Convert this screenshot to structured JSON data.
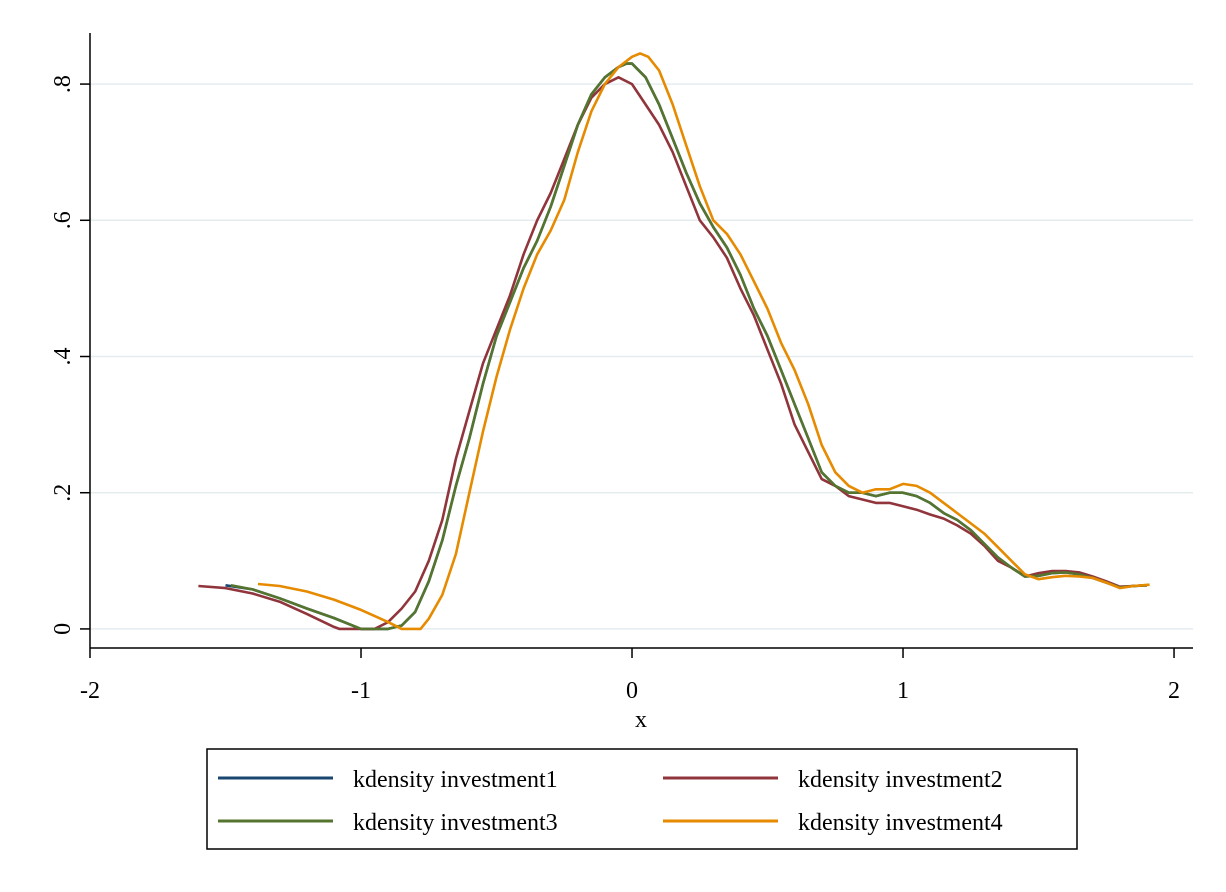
{
  "chart_data": {
    "type": "line",
    "title": "",
    "xlabel": "x",
    "ylabel": "",
    "xlim": [
      -2.0,
      2.07
    ],
    "ylim": [
      -0.028,
      0.875
    ],
    "xticks": [
      -2,
      -1,
      0,
      1,
      2
    ],
    "xtick_labels": [
      "-2",
      "-1",
      "0",
      "1",
      "2"
    ],
    "yticks": [
      0,
      0.2,
      0.4,
      0.6,
      0.8
    ],
    "ytick_labels": [
      "0",
      ".2",
      ".4",
      ".6",
      ".8"
    ],
    "grid": "horizontal",
    "legend": "bottom",
    "series": [
      {
        "name": "kdensity investment1",
        "color": "#1a476f",
        "points": [
          [
            -1.5,
            0.064
          ],
          [
            -1.4,
            0.058
          ],
          [
            -1.3,
            0.045
          ],
          [
            -1.2,
            0.03
          ],
          [
            -1.1,
            0.016
          ],
          [
            -1.0,
            0.0
          ],
          [
            -0.9,
            0.0
          ],
          [
            -0.85,
            0.005
          ],
          [
            -0.8,
            0.025
          ],
          [
            -0.75,
            0.07
          ],
          [
            -0.7,
            0.13
          ],
          [
            -0.65,
            0.21
          ],
          [
            -0.6,
            0.28
          ],
          [
            -0.55,
            0.36
          ],
          [
            -0.5,
            0.43
          ],
          [
            -0.45,
            0.48
          ],
          [
            -0.4,
            0.53
          ],
          [
            -0.35,
            0.57
          ],
          [
            -0.3,
            0.62
          ],
          [
            -0.25,
            0.68
          ],
          [
            -0.2,
            0.74
          ],
          [
            -0.15,
            0.785
          ],
          [
            -0.1,
            0.81
          ],
          [
            -0.05,
            0.825
          ],
          [
            -0.02,
            0.83
          ],
          [
            0.0,
            0.83
          ],
          [
            0.05,
            0.81
          ],
          [
            0.1,
            0.77
          ],
          [
            0.15,
            0.72
          ],
          [
            0.2,
            0.67
          ],
          [
            0.25,
            0.625
          ],
          [
            0.3,
            0.59
          ],
          [
            0.35,
            0.56
          ],
          [
            0.4,
            0.52
          ],
          [
            0.45,
            0.47
          ],
          [
            0.5,
            0.43
          ],
          [
            0.55,
            0.38
          ],
          [
            0.6,
            0.33
          ],
          [
            0.65,
            0.28
          ],
          [
            0.7,
            0.23
          ],
          [
            0.75,
            0.21
          ],
          [
            0.8,
            0.2
          ],
          [
            0.85,
            0.2
          ],
          [
            0.9,
            0.195
          ],
          [
            0.95,
            0.2
          ],
          [
            1.0,
            0.2
          ],
          [
            1.05,
            0.195
          ],
          [
            1.1,
            0.185
          ],
          [
            1.15,
            0.17
          ],
          [
            1.2,
            0.16
          ],
          [
            1.25,
            0.145
          ],
          [
            1.3,
            0.125
          ],
          [
            1.35,
            0.105
          ],
          [
            1.4,
            0.09
          ],
          [
            1.45,
            0.077
          ],
          [
            1.5,
            0.078
          ],
          [
            1.55,
            0.082
          ],
          [
            1.6,
            0.083
          ],
          [
            1.65,
            0.08
          ],
          [
            1.7,
            0.075
          ],
          [
            1.75,
            0.068
          ],
          [
            1.8,
            0.061
          ],
          [
            1.85,
            0.063
          ],
          [
            1.9,
            0.064
          ]
        ]
      },
      {
        "name": "kdensity investment2",
        "color": "#90353b",
        "points": [
          [
            -1.6,
            0.063
          ],
          [
            -1.5,
            0.06
          ],
          [
            -1.4,
            0.052
          ],
          [
            -1.3,
            0.04
          ],
          [
            -1.2,
            0.022
          ],
          [
            -1.1,
            0.003
          ],
          [
            -1.08,
            0.0
          ],
          [
            -0.95,
            0.0
          ],
          [
            -0.9,
            0.01
          ],
          [
            -0.85,
            0.03
          ],
          [
            -0.8,
            0.055
          ],
          [
            -0.75,
            0.1
          ],
          [
            -0.7,
            0.16
          ],
          [
            -0.65,
            0.25
          ],
          [
            -0.6,
            0.32
          ],
          [
            -0.55,
            0.39
          ],
          [
            -0.5,
            0.44
          ],
          [
            -0.45,
            0.49
          ],
          [
            -0.4,
            0.55
          ],
          [
            -0.35,
            0.6
          ],
          [
            -0.3,
            0.64
          ],
          [
            -0.25,
            0.69
          ],
          [
            -0.2,
            0.74
          ],
          [
            -0.15,
            0.78
          ],
          [
            -0.1,
            0.8
          ],
          [
            -0.05,
            0.81
          ],
          [
            0.0,
            0.8
          ],
          [
            0.05,
            0.77
          ],
          [
            0.1,
            0.74
          ],
          [
            0.15,
            0.7
          ],
          [
            0.2,
            0.65
          ],
          [
            0.25,
            0.6
          ],
          [
            0.3,
            0.575
          ],
          [
            0.35,
            0.545
          ],
          [
            0.4,
            0.5
          ],
          [
            0.45,
            0.46
          ],
          [
            0.5,
            0.41
          ],
          [
            0.55,
            0.36
          ],
          [
            0.6,
            0.3
          ],
          [
            0.65,
            0.26
          ],
          [
            0.7,
            0.22
          ],
          [
            0.75,
            0.21
          ],
          [
            0.8,
            0.195
          ],
          [
            0.85,
            0.19
          ],
          [
            0.9,
            0.185
          ],
          [
            0.95,
            0.185
          ],
          [
            1.0,
            0.18
          ],
          [
            1.05,
            0.175
          ],
          [
            1.1,
            0.168
          ],
          [
            1.15,
            0.162
          ],
          [
            1.2,
            0.152
          ],
          [
            1.25,
            0.14
          ],
          [
            1.3,
            0.122
          ],
          [
            1.35,
            0.1
          ],
          [
            1.4,
            0.09
          ],
          [
            1.45,
            0.077
          ],
          [
            1.5,
            0.082
          ],
          [
            1.55,
            0.085
          ],
          [
            1.6,
            0.085
          ],
          [
            1.65,
            0.083
          ],
          [
            1.7,
            0.077
          ],
          [
            1.75,
            0.07
          ],
          [
            1.8,
            0.062
          ],
          [
            1.85,
            0.063
          ],
          [
            1.9,
            0.064
          ]
        ]
      },
      {
        "name": "kdensity investment3",
        "color": "#55752f",
        "points": [
          [
            -1.48,
            0.064
          ],
          [
            -1.4,
            0.058
          ],
          [
            -1.3,
            0.045
          ],
          [
            -1.2,
            0.03
          ],
          [
            -1.1,
            0.016
          ],
          [
            -1.0,
            0.0
          ],
          [
            -0.9,
            0.0
          ],
          [
            -0.85,
            0.005
          ],
          [
            -0.8,
            0.025
          ],
          [
            -0.75,
            0.07
          ],
          [
            -0.7,
            0.13
          ],
          [
            -0.65,
            0.21
          ],
          [
            -0.6,
            0.28
          ],
          [
            -0.55,
            0.36
          ],
          [
            -0.5,
            0.43
          ],
          [
            -0.45,
            0.48
          ],
          [
            -0.4,
            0.53
          ],
          [
            -0.35,
            0.57
          ],
          [
            -0.3,
            0.62
          ],
          [
            -0.25,
            0.68
          ],
          [
            -0.2,
            0.74
          ],
          [
            -0.15,
            0.785
          ],
          [
            -0.1,
            0.81
          ],
          [
            -0.05,
            0.825
          ],
          [
            -0.02,
            0.83
          ],
          [
            0.0,
            0.83
          ],
          [
            0.05,
            0.81
          ],
          [
            0.1,
            0.77
          ],
          [
            0.15,
            0.72
          ],
          [
            0.2,
            0.67
          ],
          [
            0.25,
            0.625
          ],
          [
            0.3,
            0.59
          ],
          [
            0.35,
            0.56
          ],
          [
            0.4,
            0.52
          ],
          [
            0.45,
            0.47
          ],
          [
            0.5,
            0.43
          ],
          [
            0.55,
            0.38
          ],
          [
            0.6,
            0.33
          ],
          [
            0.65,
            0.28
          ],
          [
            0.7,
            0.23
          ],
          [
            0.75,
            0.21
          ],
          [
            0.8,
            0.2
          ],
          [
            0.85,
            0.2
          ],
          [
            0.9,
            0.195
          ],
          [
            0.95,
            0.2
          ],
          [
            1.0,
            0.2
          ],
          [
            1.05,
            0.195
          ],
          [
            1.1,
            0.185
          ],
          [
            1.15,
            0.17
          ],
          [
            1.2,
            0.16
          ],
          [
            1.25,
            0.145
          ],
          [
            1.3,
            0.125
          ],
          [
            1.35,
            0.105
          ],
          [
            1.4,
            0.09
          ],
          [
            1.45,
            0.077
          ],
          [
            1.5,
            0.078
          ],
          [
            1.55,
            0.082
          ],
          [
            1.6,
            0.083
          ],
          [
            1.65,
            0.08
          ],
          [
            1.7,
            0.075
          ],
          [
            1.75,
            0.068
          ],
          [
            1.8,
            0.061
          ],
          [
            1.85,
            0.063
          ],
          [
            1.9,
            0.064
          ]
        ]
      },
      {
        "name": "kdensity investment4",
        "color": "#e68a00",
        "points": [
          [
            -1.38,
            0.066
          ],
          [
            -1.3,
            0.063
          ],
          [
            -1.2,
            0.055
          ],
          [
            -1.1,
            0.043
          ],
          [
            -1.0,
            0.028
          ],
          [
            -0.9,
            0.01
          ],
          [
            -0.85,
            0.0
          ],
          [
            -0.78,
            0.0
          ],
          [
            -0.75,
            0.015
          ],
          [
            -0.7,
            0.05
          ],
          [
            -0.65,
            0.11
          ],
          [
            -0.6,
            0.2
          ],
          [
            -0.55,
            0.29
          ],
          [
            -0.5,
            0.37
          ],
          [
            -0.45,
            0.44
          ],
          [
            -0.4,
            0.5
          ],
          [
            -0.35,
            0.55
          ],
          [
            -0.3,
            0.585
          ],
          [
            -0.25,
            0.63
          ],
          [
            -0.2,
            0.7
          ],
          [
            -0.15,
            0.76
          ],
          [
            -0.1,
            0.8
          ],
          [
            -0.05,
            0.825
          ],
          [
            0.0,
            0.84
          ],
          [
            0.03,
            0.845
          ],
          [
            0.06,
            0.84
          ],
          [
            0.1,
            0.82
          ],
          [
            0.15,
            0.77
          ],
          [
            0.2,
            0.71
          ],
          [
            0.25,
            0.65
          ],
          [
            0.3,
            0.6
          ],
          [
            0.35,
            0.58
          ],
          [
            0.4,
            0.55
          ],
          [
            0.45,
            0.51
          ],
          [
            0.5,
            0.47
          ],
          [
            0.55,
            0.42
          ],
          [
            0.6,
            0.38
          ],
          [
            0.65,
            0.33
          ],
          [
            0.7,
            0.27
          ],
          [
            0.75,
            0.23
          ],
          [
            0.8,
            0.21
          ],
          [
            0.85,
            0.2
          ],
          [
            0.9,
            0.205
          ],
          [
            0.95,
            0.205
          ],
          [
            1.0,
            0.213
          ],
          [
            1.05,
            0.21
          ],
          [
            1.1,
            0.2
          ],
          [
            1.15,
            0.185
          ],
          [
            1.2,
            0.17
          ],
          [
            1.25,
            0.155
          ],
          [
            1.3,
            0.14
          ],
          [
            1.35,
            0.12
          ],
          [
            1.4,
            0.1
          ],
          [
            1.45,
            0.08
          ],
          [
            1.5,
            0.073
          ],
          [
            1.55,
            0.076
          ],
          [
            1.6,
            0.078
          ],
          [
            1.65,
            0.077
          ],
          [
            1.7,
            0.075
          ],
          [
            1.75,
            0.068
          ],
          [
            1.8,
            0.06
          ],
          [
            1.85,
            0.063
          ],
          [
            1.91,
            0.065
          ]
        ]
      }
    ]
  }
}
